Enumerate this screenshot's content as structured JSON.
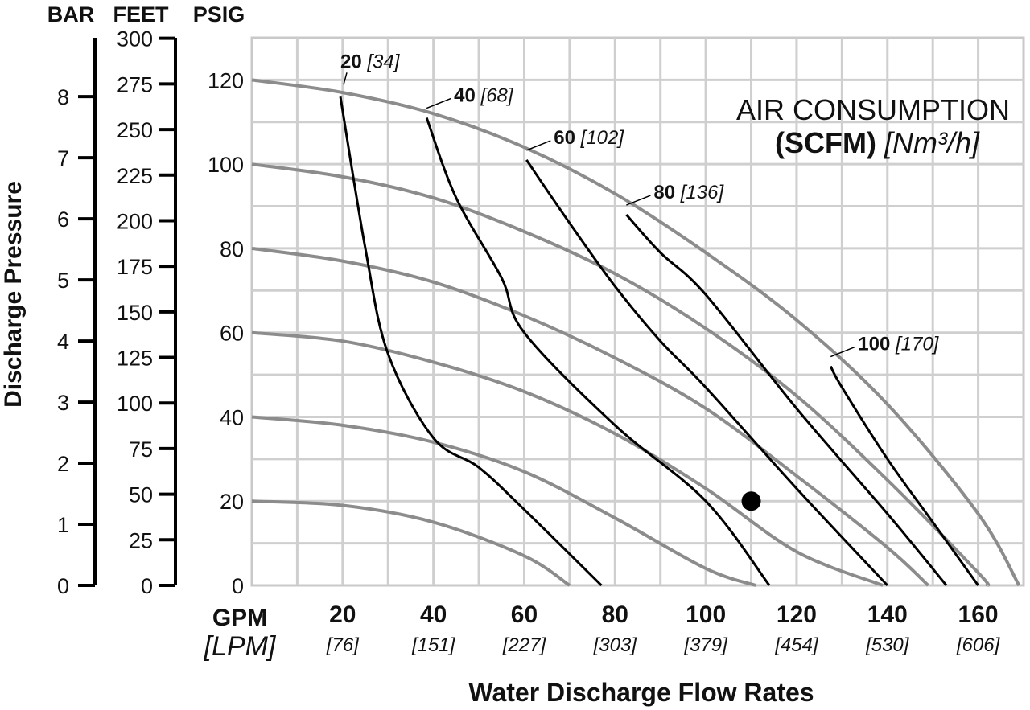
{
  "chart_data": {
    "type": "line",
    "title": "AIR CONSUMPTION",
    "title_line2_bold": "(SCFM)",
    "title_line2_italic": "[Nm³/h]",
    "xlabel": "Water Discharge Flow Rates",
    "ylabel": "Discharge Pressure",
    "x_unit_primary": "GPM",
    "x_unit_secondary": "[LPM]",
    "xlim": [
      0,
      170
    ],
    "ylim": [
      0,
      130
    ],
    "grid": true,
    "x_ticks": [
      {
        "gpm": "20",
        "lpm": "[76]",
        "value": 20
      },
      {
        "gpm": "40",
        "lpm": "[151]",
        "value": 40
      },
      {
        "gpm": "60",
        "lpm": "[227]",
        "value": 60
      },
      {
        "gpm": "80",
        "lpm": "[303]",
        "value": 80
      },
      {
        "gpm": "100",
        "lpm": "[379]",
        "value": 100
      },
      {
        "gpm": "120",
        "lpm": "[454]",
        "value": 120
      },
      {
        "gpm": "140",
        "lpm": "[530]",
        "value": 140
      },
      {
        "gpm": "160",
        "lpm": "[606]",
        "value": 160
      }
    ],
    "y_axes": {
      "bar": {
        "header": "BAR",
        "ticks": [
          "0",
          "1",
          "2",
          "3",
          "4",
          "5",
          "6",
          "7",
          "8"
        ],
        "values": [
          0,
          1,
          2,
          3,
          4,
          5,
          6,
          7,
          8
        ]
      },
      "feet": {
        "header": "FEET",
        "ticks": [
          "0",
          "25",
          "50",
          "75",
          "100",
          "125",
          "150",
          "175",
          "200",
          "225",
          "250",
          "275",
          "300"
        ],
        "values": [
          0,
          25,
          50,
          75,
          100,
          125,
          150,
          175,
          200,
          225,
          250,
          275,
          300
        ]
      },
      "psig": {
        "header": "PSIG",
        "ticks": [
          "0",
          "20",
          "40",
          "60",
          "80",
          "100",
          "120"
        ],
        "values": [
          0,
          20,
          40,
          60,
          80,
          100,
          120
        ]
      }
    },
    "pressure_curves": [
      {
        "points": [
          [
            0,
            20
          ],
          [
            20,
            19
          ],
          [
            40,
            15
          ],
          [
            60,
            7
          ],
          [
            70,
            0
          ]
        ]
      },
      {
        "points": [
          [
            0,
            40
          ],
          [
            20,
            38
          ],
          [
            40,
            34
          ],
          [
            60,
            27
          ],
          [
            80,
            16
          ],
          [
            100,
            4
          ],
          [
            111,
            0
          ]
        ]
      },
      {
        "points": [
          [
            0,
            60
          ],
          [
            20,
            58
          ],
          [
            40,
            53
          ],
          [
            60,
            46
          ],
          [
            80,
            36
          ],
          [
            100,
            23
          ],
          [
            120,
            8
          ],
          [
            139,
            0
          ]
        ]
      },
      {
        "points": [
          [
            0,
            80
          ],
          [
            20,
            77
          ],
          [
            40,
            72
          ],
          [
            60,
            64
          ],
          [
            80,
            54
          ],
          [
            100,
            42
          ],
          [
            120,
            26
          ],
          [
            140,
            9
          ],
          [
            149,
            0
          ]
        ]
      },
      {
        "points": [
          [
            0,
            100
          ],
          [
            20,
            97
          ],
          [
            40,
            92
          ],
          [
            60,
            84
          ],
          [
            80,
            74
          ],
          [
            100,
            61
          ],
          [
            120,
            45
          ],
          [
            140,
            25
          ],
          [
            160,
            3
          ],
          [
            162,
            0
          ]
        ]
      },
      {
        "points": [
          [
            0,
            120
          ],
          [
            20,
            117
          ],
          [
            40,
            112
          ],
          [
            60,
            104
          ],
          [
            80,
            93
          ],
          [
            100,
            79
          ],
          [
            120,
            63
          ],
          [
            140,
            43
          ],
          [
            160,
            17
          ],
          [
            169,
            0
          ]
        ]
      }
    ],
    "air_curves": [
      {
        "label": "20",
        "label_metric": "[34]",
        "points": [
          [
            19.5,
            116
          ],
          [
            25,
            80
          ],
          [
            30,
            55
          ],
          [
            40,
            35
          ],
          [
            50,
            28
          ],
          [
            60,
            18
          ],
          [
            77,
            0
          ]
        ]
      },
      {
        "label": "40",
        "label_metric": "[68]",
        "points": [
          [
            38.5,
            111
          ],
          [
            45,
            92
          ],
          [
            55,
            73
          ],
          [
            60,
            60
          ],
          [
            80,
            38
          ],
          [
            100,
            20
          ],
          [
            114,
            0
          ]
        ]
      },
      {
        "label": "60",
        "label_metric": "[102]",
        "points": [
          [
            60.5,
            101
          ],
          [
            70,
            86
          ],
          [
            80,
            71
          ],
          [
            90,
            58
          ],
          [
            100,
            47
          ],
          [
            120,
            23
          ],
          [
            140,
            0
          ]
        ]
      },
      {
        "label": "80",
        "label_metric": "[136]",
        "points": [
          [
            82.5,
            88
          ],
          [
            90,
            79
          ],
          [
            100,
            69
          ],
          [
            120,
            42
          ],
          [
            140,
            17
          ],
          [
            153,
            0
          ]
        ]
      },
      {
        "label": "100",
        "label_metric": "[170]",
        "points": [
          [
            127.5,
            52
          ],
          [
            130,
            47
          ],
          [
            140,
            30
          ],
          [
            150,
            15
          ],
          [
            160,
            0
          ]
        ]
      }
    ],
    "marker": {
      "x": 110,
      "y": 20
    }
  }
}
